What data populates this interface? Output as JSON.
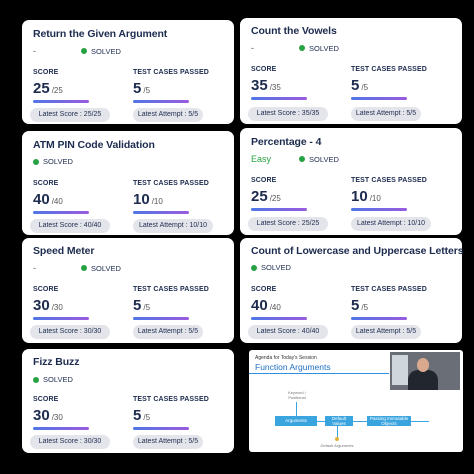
{
  "colors": {
    "solved_dot": "#27a243",
    "bar_start": "#4f76e6",
    "bar_end": "#9a5be0",
    "accent_blue": "#1f6fc1"
  },
  "labels": {
    "score": "SCORE",
    "tests": "TEST CASES PASSED"
  },
  "cards": [
    {
      "title": "Return the Given Argument",
      "difficulty": "-",
      "status": "SOLVED",
      "score": "25",
      "score_max": "/25",
      "tests": "5",
      "tests_max": "/5",
      "latest_score": "Latest Score : 25/25",
      "latest_attempt": "Latest Attempt : 5/5"
    },
    {
      "title": "Count the Vowels",
      "difficulty": "-",
      "status": "SOLVED",
      "score": "35",
      "score_max": "/35",
      "tests": "5",
      "tests_max": "/5",
      "latest_score": "Latest Score : 35/35",
      "latest_attempt": "Latest Attempt : 5/5"
    },
    {
      "title": "ATM PIN Code Validation",
      "difficulty": "",
      "status": "SOLVED",
      "score": "40",
      "score_max": "/40",
      "tests": "10",
      "tests_max": "/10",
      "latest_score": "Latest Score : 40/40",
      "latest_attempt": "Latest Attempt : 10/10"
    },
    {
      "title": "Percentage - 4",
      "difficulty": "Easy",
      "status": "SOLVED",
      "score": "25",
      "score_max": "/25",
      "tests": "10",
      "tests_max": "/10",
      "latest_score": "Latest Score : 25/25",
      "latest_attempt": "Latest Attempt : 10/10"
    },
    {
      "title": "Speed Meter",
      "difficulty": "-",
      "status": "SOLVED",
      "score": "30",
      "score_max": "/30",
      "tests": "5",
      "tests_max": "/5",
      "latest_score": "Latest Score : 30/30",
      "latest_attempt": "Latest Attempt : 5/5"
    },
    {
      "title": "Count of Lowercase and Uppercase Letters",
      "difficulty": "",
      "status": "SOLVED",
      "score": "40",
      "score_max": "/40",
      "tests": "5",
      "tests_max": "/5",
      "latest_score": "Latest Score : 40/40",
      "latest_attempt": "Latest Attempt : 5/5"
    },
    {
      "title": "Fizz Buzz",
      "difficulty": "",
      "status": "SOLVED",
      "score": "30",
      "score_max": "/30",
      "tests": "5",
      "tests_max": "/5",
      "latest_score": "Latest Score : 30/30",
      "latest_attempt": "Latest Attempt : 5/5"
    }
  ],
  "video": {
    "agenda": "Agenda for Today's Session",
    "title": "Function Arguments",
    "nodes": {
      "arguments": "Arguments",
      "keyword": "Keyword / Positional",
      "default_values": "Default Values",
      "passing": "Passing Immutable Objects",
      "default_arguments": "Default Arguments"
    },
    "icons": {
      "presenter": "presenter-video-icon"
    }
  }
}
